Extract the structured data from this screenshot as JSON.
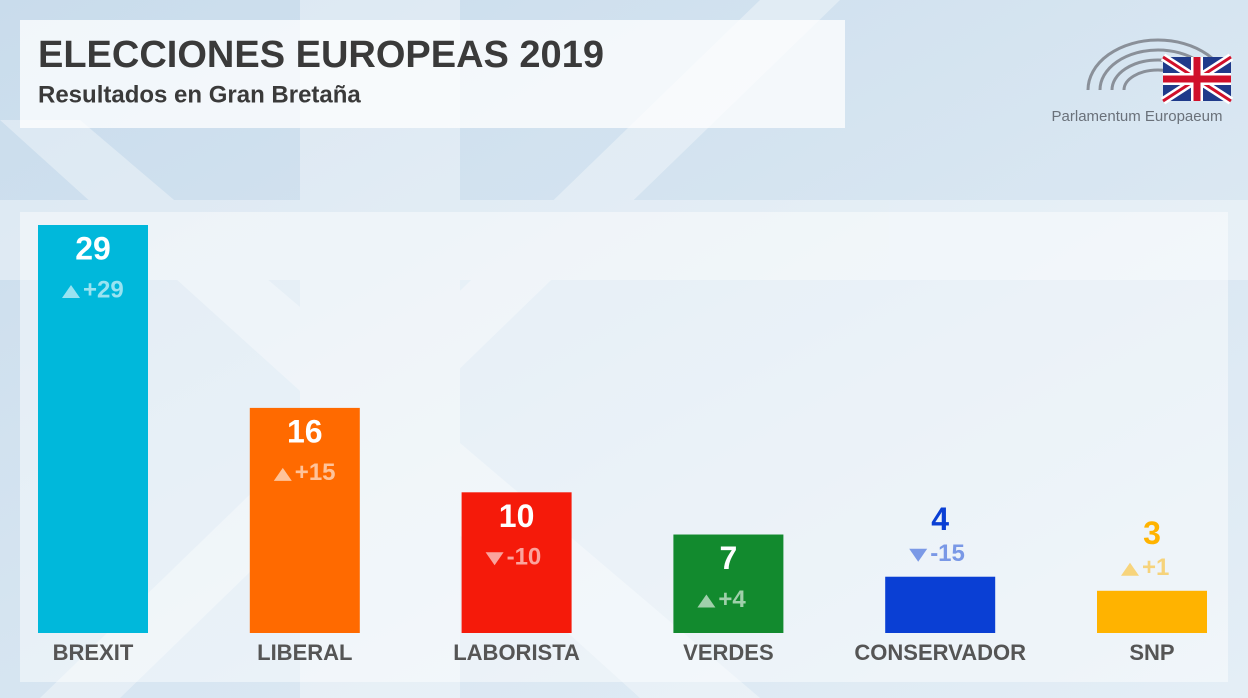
{
  "chart_data": {
    "type": "bar",
    "title": "ELECCIONES EUROPEAS 2019",
    "subtitle": "Resultados en Gran Bretaña",
    "logo_text": "Parlamentum Europaeum",
    "categories": [
      "BREXIT",
      "LIBERAL",
      "LABORISTA",
      "VERDES",
      "CONSERVADOR",
      "SNP"
    ],
    "values": [
      29,
      16,
      10,
      7,
      4,
      3
    ],
    "colors": [
      "#00b8db",
      "#ff6a00",
      "#f51a0a",
      "#128a2e",
      "#0a3fd4",
      "#ffb300"
    ],
    "changes": [
      29,
      15,
      -10,
      4,
      -15,
      1
    ],
    "change_labels": [
      "+29",
      "+15",
      "-10",
      "+4",
      "-15",
      "+1"
    ]
  }
}
